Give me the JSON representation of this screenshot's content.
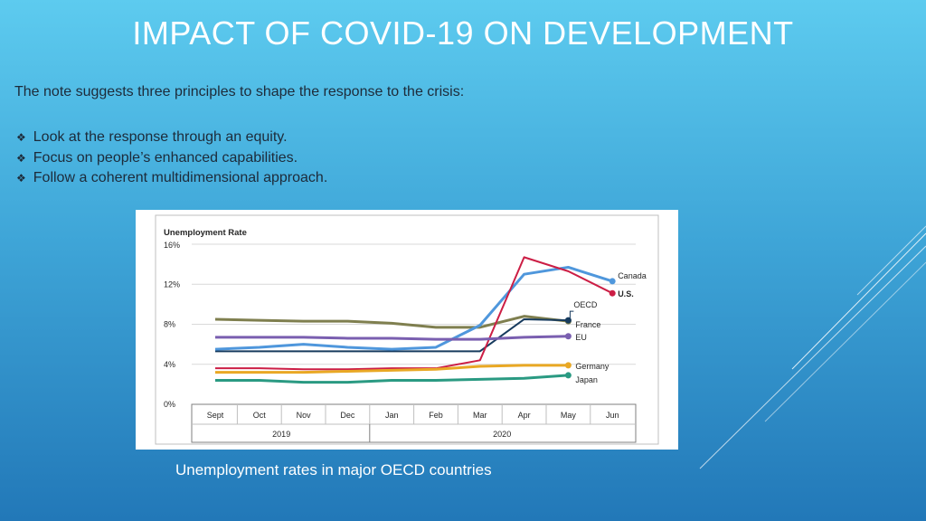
{
  "slide": {
    "title": "IMPACT OF COVID-19 ON DEVELOPMENT",
    "intro": "The note suggests three principles to shape the response to the crisis:",
    "bullets": [
      "Look at the response through an equity.",
      "Focus on people’s enhanced capabilities.",
      "Follow a coherent multidimensional approach."
    ],
    "caption": "Unemployment rates in major OECD countries"
  },
  "chart_data": {
    "type": "line",
    "title": "Unemployment Rate",
    "categories": [
      "Sept",
      "Oct",
      "Nov",
      "Dec",
      "Jan",
      "Feb",
      "Mar",
      "Apr",
      "May",
      "Jun"
    ],
    "year_labels": [
      {
        "label": "2019",
        "from": 0,
        "to": 3
      },
      {
        "label": "2020",
        "from": 4,
        "to": 9
      }
    ],
    "y_ticks": [
      "0%",
      "4%",
      "8%",
      "12%",
      "16%"
    ],
    "ylim": [
      0,
      16
    ],
    "grid": true,
    "series": [
      {
        "name": "France",
        "color": "#7f7f4f",
        "values": [
          8.5,
          8.4,
          8.3,
          8.3,
          8.1,
          7.7,
          7.7,
          8.8,
          8.3,
          null
        ],
        "stroke": 3
      },
      {
        "name": "OECD",
        "color": "#173b5e",
        "values": [
          5.3,
          5.3,
          5.3,
          5.3,
          5.3,
          5.3,
          5.3,
          8.5,
          8.4,
          null
        ],
        "stroke": 2
      },
      {
        "name": "Canada",
        "color": "#4f97dc",
        "values": [
          5.5,
          5.7,
          6.0,
          5.7,
          5.5,
          5.7,
          7.9,
          13.0,
          13.7,
          12.3
        ],
        "stroke": 3
      },
      {
        "name": "U.S.",
        "color": "#cc1e45",
        "values": [
          3.6,
          3.6,
          3.5,
          3.5,
          3.6,
          3.6,
          4.4,
          14.7,
          13.3,
          11.1
        ],
        "stroke": 2
      },
      {
        "name": "EU",
        "color": "#7a5fb0",
        "values": [
          6.7,
          6.7,
          6.7,
          6.6,
          6.6,
          6.5,
          6.5,
          6.7,
          6.8,
          null
        ],
        "stroke": 3
      },
      {
        "name": "Germany",
        "color": "#e9a824",
        "values": [
          3.2,
          3.2,
          3.2,
          3.3,
          3.4,
          3.5,
          3.8,
          3.9,
          3.9,
          null
        ],
        "stroke": 3
      },
      {
        "name": "Japan",
        "color": "#2a9a82",
        "values": [
          2.4,
          2.4,
          2.2,
          2.2,
          2.4,
          2.4,
          2.5,
          2.6,
          2.9,
          null
        ],
        "stroke": 3
      }
    ],
    "end_labels": [
      {
        "series": "Canada",
        "text": "Canada",
        "bold": false
      },
      {
        "series": "U.S.",
        "text": "U.S.",
        "bold": true
      },
      {
        "series": "OECD",
        "text": "OECD",
        "bold": false
      },
      {
        "series": "France",
        "text": "France",
        "bold": false
      },
      {
        "series": "EU",
        "text": "EU",
        "bold": false
      },
      {
        "series": "Germany",
        "text": "Germany",
        "bold": false
      },
      {
        "series": "Japan",
        "text": "Japan",
        "bold": false
      }
    ]
  }
}
